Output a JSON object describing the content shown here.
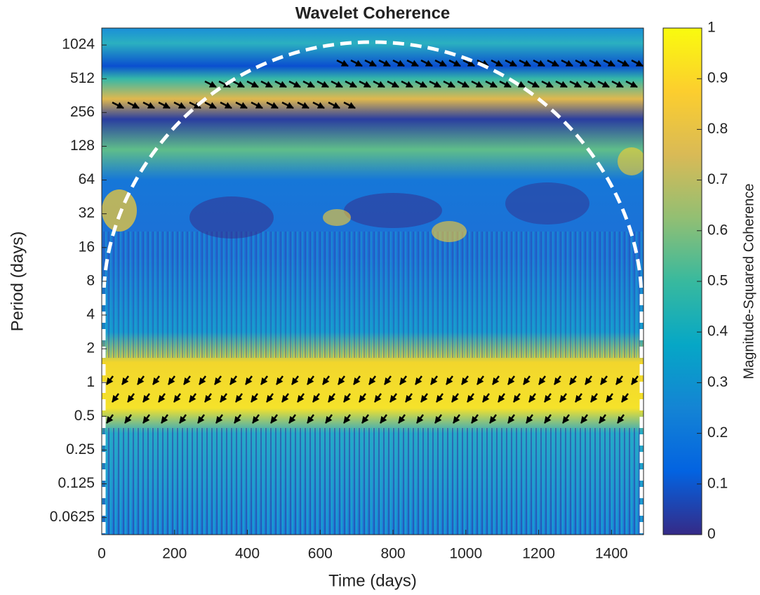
{
  "chart_data": {
    "type": "heatmap",
    "title": "Wavelet Coherence",
    "xlabel": "Time (days)",
    "ylabel": "Period (days)",
    "xlim": [
      0,
      1488
    ],
    "xticks": [
      0,
      200,
      400,
      600,
      800,
      1000,
      1200,
      1400
    ],
    "ylim": [
      0.044,
      1450
    ],
    "yscale": "log2",
    "yticks": [
      0.0625,
      0.125,
      0.25,
      0.5,
      1,
      2,
      4,
      8,
      16,
      32,
      64,
      128,
      256,
      512,
      1024
    ],
    "colorbar": {
      "label": "Magnitude-Squared Coherence",
      "lim": [
        0,
        1
      ],
      "ticks": [
        0,
        0.1,
        0.2,
        0.3,
        0.4,
        0.5,
        0.6,
        0.7,
        0.8,
        0.9,
        1
      ]
    },
    "colormap": [
      "#352a87",
      "#0363e1",
      "#1484d4",
      "#06a7c6",
      "#38b99e",
      "#92bf73",
      "#d9ba56",
      "#fcce2e",
      "#f9fb0e"
    ]
  }
}
